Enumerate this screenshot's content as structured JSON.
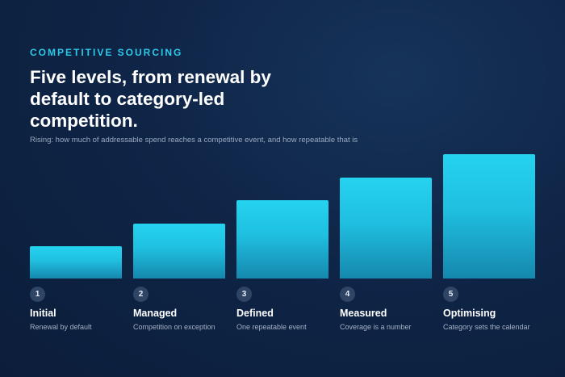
{
  "header": {
    "eyebrow": "COMPETITIVE SOURCING",
    "title": "Five levels, from renewal by default to category-led competition.",
    "subtitle": "Rising: how much of addressable spend reaches a competitive event, and how repeatable that is"
  },
  "levels": [
    {
      "number": "1",
      "name": "Initial",
      "description": "Renewal by default",
      "value": 1
    },
    {
      "number": "2",
      "name": "Managed",
      "description": "Competition on exception",
      "value": 2
    },
    {
      "number": "3",
      "name": "Defined",
      "description": "One repeatable event",
      "value": 3
    },
    {
      "number": "4",
      "name": "Measured",
      "description": "Coverage is a number",
      "value": 4
    },
    {
      "number": "5",
      "name": "Optimising",
      "description": "Category sets the calendar",
      "value": 5
    }
  ],
  "colors": {
    "accent": "#2ec8e8",
    "bar_top": "#25d3ef",
    "bar_bottom": "#1588ad",
    "background": "#0f2547"
  }
}
